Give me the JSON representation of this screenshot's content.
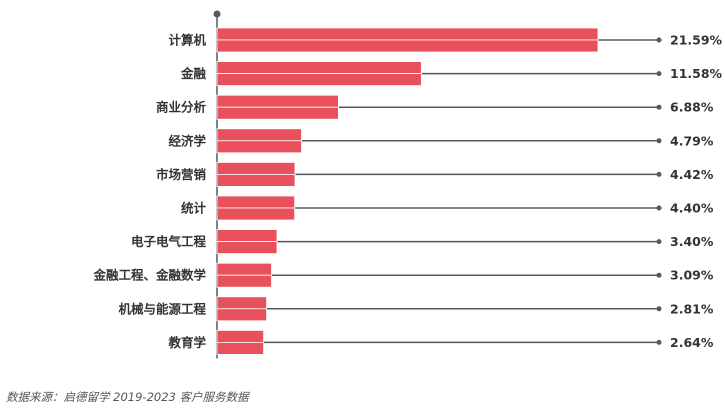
{
  "chart_data": {
    "type": "bar",
    "orientation": "horizontal",
    "categories": [
      "计算机",
      "金融",
      "商业分析",
      "经济学",
      "市场营销",
      "统计",
      "电子电气工程",
      "金融工程、金融数学",
      "机械与能源工程",
      "教育学"
    ],
    "values": [
      21.59,
      11.58,
      6.88,
      4.79,
      4.42,
      4.4,
      3.4,
      3.09,
      2.81,
      2.64
    ],
    "value_labels": [
      "21.59%",
      "11.58%",
      "6.88%",
      "4.79%",
      "4.42%",
      "4.40%",
      "3.40%",
      "3.09%",
      "2.81%",
      "2.64%"
    ],
    "title": "",
    "xlabel": "",
    "ylabel": "",
    "xlim": [
      0,
      24
    ],
    "grid": false,
    "legend": "none",
    "colors": {
      "bar": "#e8505b",
      "bar_stroke": "#ffffff",
      "leader_line": "#555a60",
      "axis": "#555a60",
      "text": "#333333"
    }
  },
  "source_note": "数据来源：启德留学 2019-2023 客户服务数据"
}
